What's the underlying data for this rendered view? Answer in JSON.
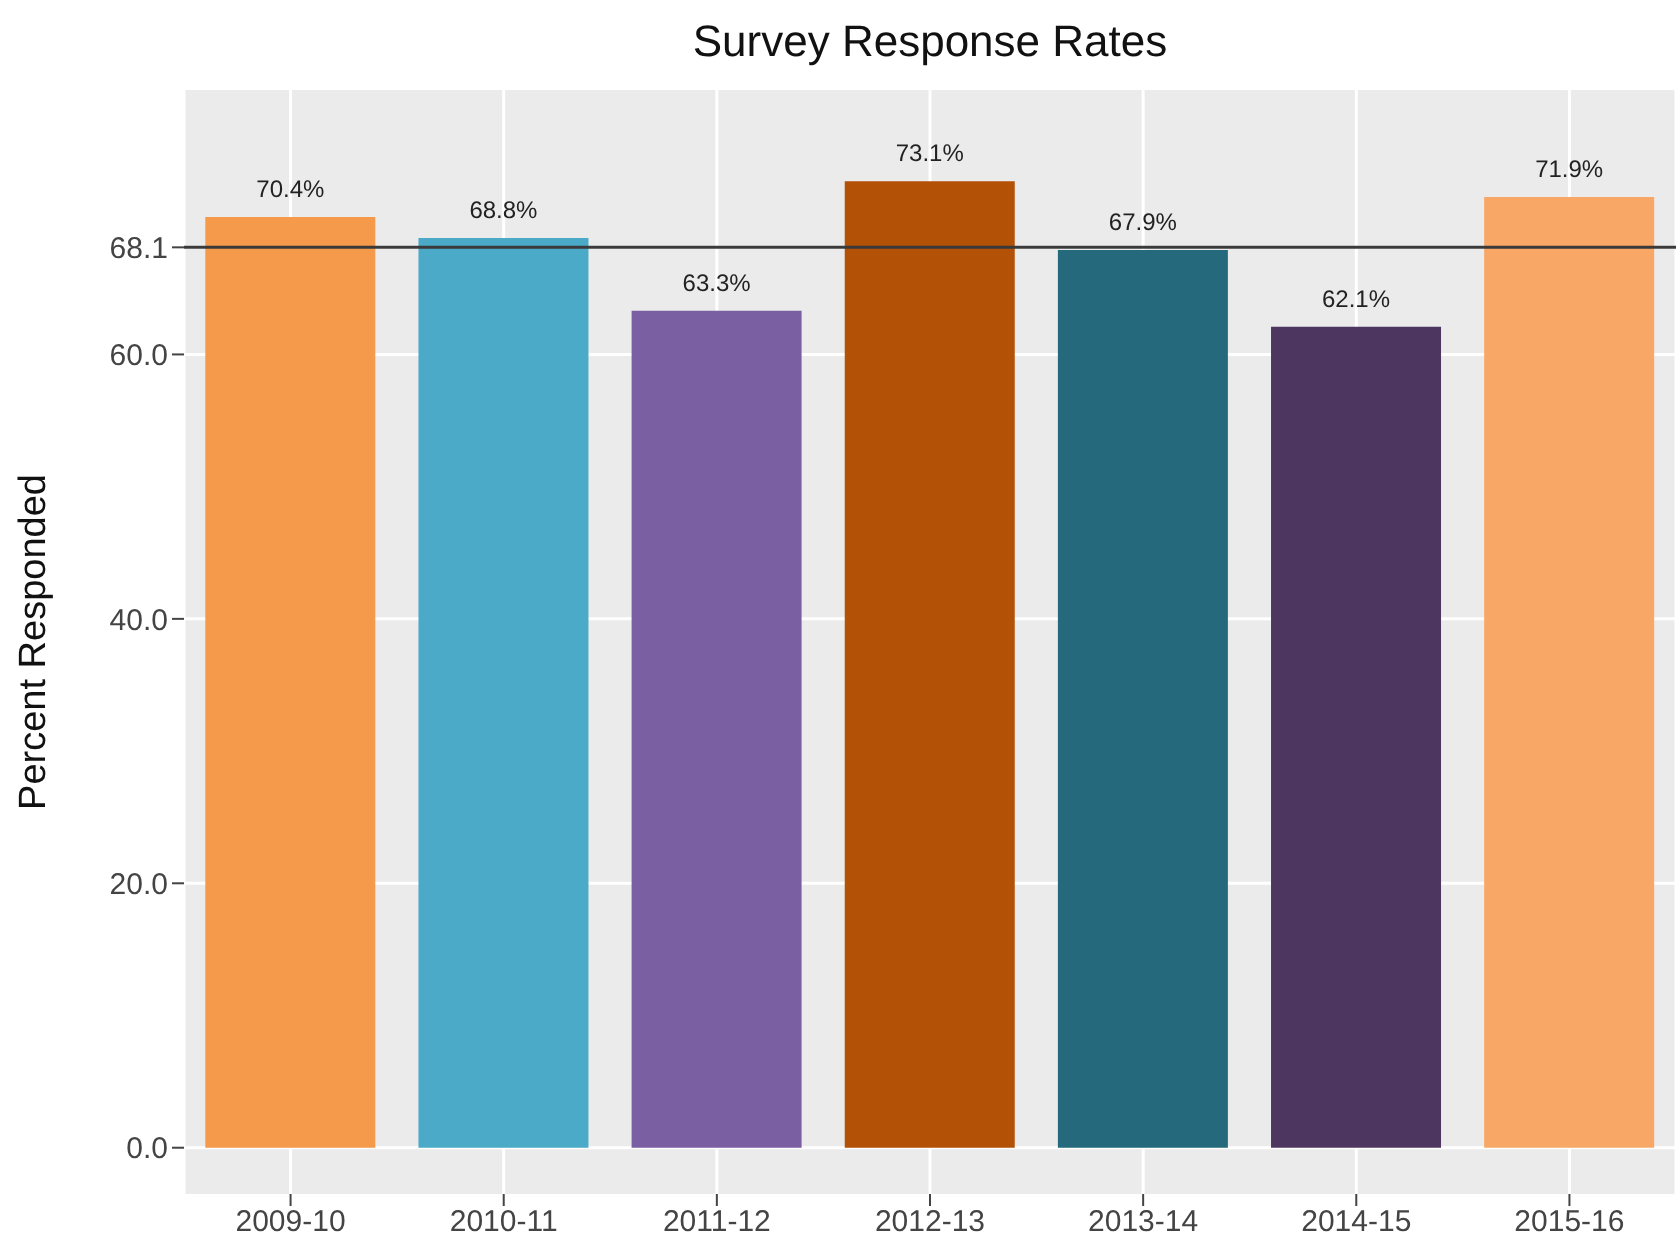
{
  "chart_data": {
    "type": "bar",
    "title": "Survey Response Rates",
    "ylabel": "Percent Responded",
    "categories": [
      "2009-10",
      "2010-11",
      "2011-12",
      "2012-13",
      "2013-14",
      "2014-15",
      "2015-16"
    ],
    "values": [
      70.4,
      68.8,
      63.3,
      73.1,
      67.9,
      62.1,
      71.9
    ],
    "colors": [
      "#f59a4a",
      "#4aaac8",
      "#7b5fa3",
      "#b35106",
      "#24697c",
      "#4d3660",
      "#f8a766"
    ],
    "value_labels": [
      "70.4%",
      "68.8%",
      "63.3%",
      "73.1%",
      "67.9%",
      "62.1%",
      "71.9%"
    ],
    "ylim": [
      -3.5,
      80
    ],
    "yticks": [
      {
        "value": 0,
        "label": "0.0"
      },
      {
        "value": 20,
        "label": "20.0"
      },
      {
        "value": 40,
        "label": "40.0"
      },
      {
        "value": 60,
        "label": "60.0"
      },
      68.1
    ],
    "ref_lines": [
      {
        "axis": "y",
        "value": 68.1,
        "color": "#3a3a3a"
      }
    ],
    "grid": true
  }
}
